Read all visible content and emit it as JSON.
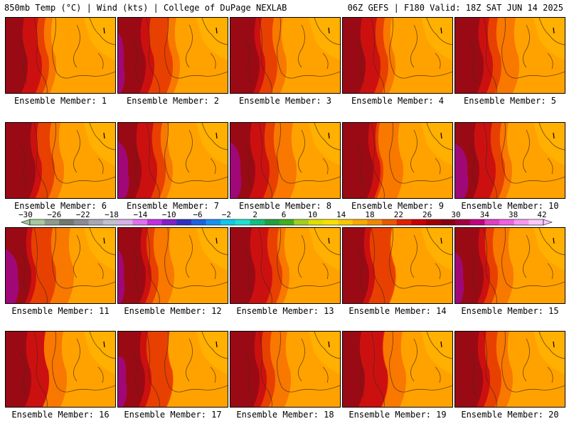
{
  "header": {
    "left": "850mb Temp (°C) | Wind (kts) | College of DuPage NEXLAB",
    "right": "06Z GEFS | F180 Valid: 18Z SAT JUN 14 2025"
  },
  "panels": [
    {
      "label": "Ensemble Member: 1"
    },
    {
      "label": "Ensemble Member: 2"
    },
    {
      "label": "Ensemble Member: 3"
    },
    {
      "label": "Ensemble Member: 4"
    },
    {
      "label": "Ensemble Member: 5"
    },
    {
      "label": "Ensemble Member: 6"
    },
    {
      "label": "Ensemble Member: 7"
    },
    {
      "label": "Ensemble Member: 8"
    },
    {
      "label": "Ensemble Member: 9"
    },
    {
      "label": "Ensemble Member: 10"
    },
    {
      "label": "Ensemble Member: 11"
    },
    {
      "label": "Ensemble Member: 12"
    },
    {
      "label": "Ensemble Member: 13"
    },
    {
      "label": "Ensemble Member: 14"
    },
    {
      "label": "Ensemble Member: 15"
    },
    {
      "label": "Ensemble Member: 16"
    },
    {
      "label": "Ensemble Member: 17"
    },
    {
      "label": "Ensemble Member: 18"
    },
    {
      "label": "Ensemble Member: 19"
    },
    {
      "label": "Ensemble Member: 20"
    }
  ],
  "colorbar": {
    "ticks": [
      "−30",
      "−26",
      "−22",
      "−18",
      "−14",
      "−10",
      "−6",
      "−2",
      "2",
      "6",
      "10",
      "14",
      "18",
      "22",
      "26",
      "30",
      "34",
      "38",
      "42"
    ],
    "colors": [
      "#a8c8a0",
      "#8c9c8c",
      "#707870",
      "#8a8a92",
      "#a8a8b4",
      "#c0c0d0",
      "#d8b0e8",
      "#e070f0",
      "#c030e0",
      "#8020c8",
      "#3030c0",
      "#2060e0",
      "#1890f0",
      "#10c8e8",
      "#20e0d0",
      "#10c080",
      "#20a040",
      "#40b020",
      "#a0d020",
      "#e0e000",
      "#f8e000",
      "#f8c800",
      "#f8a800",
      "#f08800",
      "#e85800",
      "#e02000",
      "#c80000",
      "#a00000",
      "#880010",
      "#a00040",
      "#c00080",
      "#e040c0",
      "#f060e0",
      "#f898f0",
      "#fcc8fc"
    ]
  },
  "legend_colors": {
    "t10": "#f8c000",
    "t14": "#ffb000",
    "t18": "#ffa200",
    "t22": "#f87800",
    "t26": "#e84000",
    "t30": "#cc1010",
    "t34": "#9a0a14",
    "t38": "#8a0840",
    "t42": "#a00878",
    "outline": "#4a2a10"
  }
}
